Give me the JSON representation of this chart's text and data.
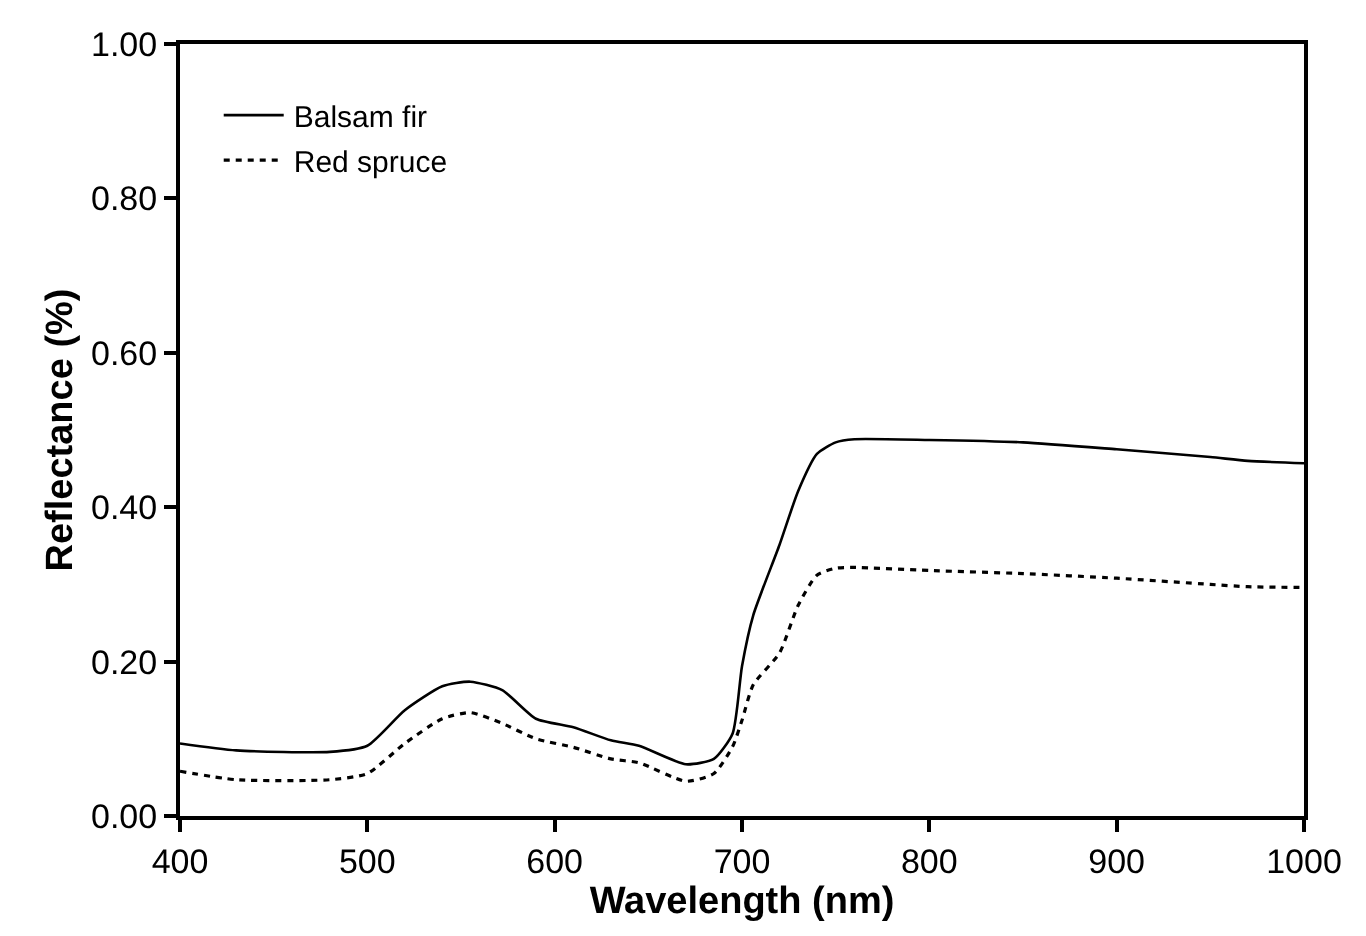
{
  "chart_data": {
    "type": "line",
    "xlabel": "Wavelength (nm)",
    "ylabel": "Reflectance (%)",
    "x": [
      400,
      430,
      480,
      500,
      520,
      540,
      555,
      572,
      590,
      610,
      630,
      645,
      670,
      685,
      695,
      700,
      706,
      720,
      730,
      740,
      750,
      760,
      800,
      850,
      900,
      950,
      970,
      1000
    ],
    "series": [
      {
        "name": "Balsam fir",
        "color": "#000000",
        "line_style": "solid",
        "values": [
          0.094,
          0.085,
          0.083,
          0.091,
          0.137,
          0.168,
          0.174,
          0.163,
          0.126,
          0.115,
          0.098,
          0.091,
          0.067,
          0.074,
          0.107,
          0.194,
          0.26,
          0.351,
          0.421,
          0.469,
          0.484,
          0.488,
          0.487,
          0.484,
          0.475,
          0.465,
          0.46,
          0.457
        ]
      },
      {
        "name": "Red spruce",
        "color": "#000000",
        "line_style": "dotted",
        "values": [
          0.058,
          0.047,
          0.047,
          0.055,
          0.094,
          0.126,
          0.134,
          0.12,
          0.1,
          0.089,
          0.074,
          0.069,
          0.045,
          0.055,
          0.09,
          0.124,
          0.17,
          0.211,
          0.273,
          0.312,
          0.321,
          0.322,
          0.318,
          0.314,
          0.308,
          0.3,
          0.297,
          0.296
        ]
      }
    ],
    "xlim": [
      400,
      1000
    ],
    "xticks": [
      400,
      500,
      600,
      700,
      800,
      900,
      1000
    ],
    "ylim": [
      0,
      1
    ],
    "yticks": [
      {
        "value": 0,
        "label": "0.00"
      },
      {
        "value": 0.2,
        "label": "0.20"
      },
      {
        "value": 0.4,
        "label": "0.40"
      },
      {
        "value": 0.6,
        "label": "0.60"
      },
      {
        "value": 0.8,
        "label": "0.80"
      },
      {
        "value": 1,
        "label": "1.00"
      }
    ],
    "legend": "top left",
    "marker": "none"
  }
}
